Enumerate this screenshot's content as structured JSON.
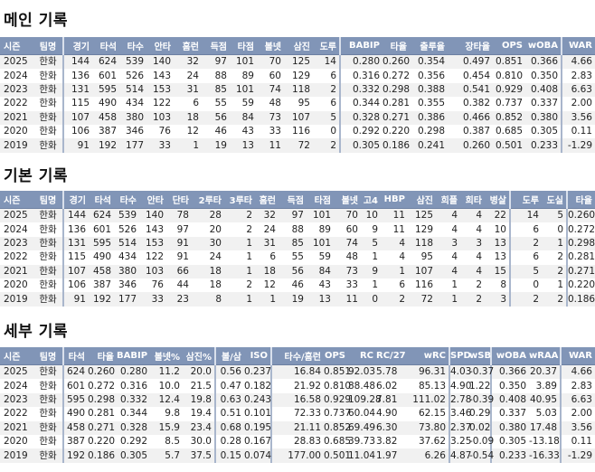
{
  "colors": {
    "header_bg": "#8195b7",
    "row_alt": "#f1f1f1"
  },
  "sections": [
    {
      "title": "메인 기록",
      "columns": [
        "시즌",
        "팀명",
        "경기",
        "타석",
        "타수",
        "안타",
        "홈런",
        "득점",
        "타점",
        "볼넷",
        "삼진",
        "도루",
        "BABIP",
        "타율",
        "출루율",
        "장타율",
        "OPS",
        "wOBA",
        "WAR"
      ],
      "rows": [
        [
          "2025",
          "한화",
          "144",
          "624",
          "539",
          "140",
          "32",
          "97",
          "101",
          "70",
          "125",
          "14",
          "0.280",
          "0.260",
          "0.354",
          "0.497",
          "0.851",
          "0.366",
          "4.66"
        ],
        [
          "2024",
          "한화",
          "136",
          "601",
          "526",
          "143",
          "24",
          "88",
          "89",
          "60",
          "129",
          "6",
          "0.316",
          "0.272",
          "0.356",
          "0.454",
          "0.810",
          "0.350",
          "2.83"
        ],
        [
          "2023",
          "한화",
          "131",
          "595",
          "514",
          "153",
          "31",
          "85",
          "101",
          "74",
          "118",
          "2",
          "0.332",
          "0.298",
          "0.388",
          "0.541",
          "0.929",
          "0.408",
          "6.63"
        ],
        [
          "2022",
          "한화",
          "115",
          "490",
          "434",
          "122",
          "6",
          "55",
          "59",
          "48",
          "95",
          "6",
          "0.344",
          "0.281",
          "0.355",
          "0.382",
          "0.737",
          "0.337",
          "2.00"
        ],
        [
          "2021",
          "한화",
          "107",
          "458",
          "380",
          "103",
          "18",
          "56",
          "84",
          "73",
          "107",
          "5",
          "0.328",
          "0.271",
          "0.386",
          "0.466",
          "0.852",
          "0.380",
          "3.56"
        ],
        [
          "2020",
          "한화",
          "106",
          "387",
          "346",
          "76",
          "12",
          "46",
          "43",
          "33",
          "116",
          "0",
          "0.292",
          "0.220",
          "0.298",
          "0.387",
          "0.685",
          "0.305",
          "0.11"
        ],
        [
          "2019",
          "한화",
          "91",
          "192",
          "177",
          "33",
          "1",
          "19",
          "13",
          "11",
          "72",
          "2",
          "0.305",
          "0.186",
          "0.241",
          "0.260",
          "0.501",
          "0.233",
          "-1.29"
        ]
      ]
    },
    {
      "title": "기본 기록",
      "columns": [
        "시즌",
        "팀명",
        "경기",
        "타석",
        "타수",
        "안타",
        "단타",
        "2루타",
        "3루타",
        "홈런",
        "득점",
        "타점",
        "볼넷",
        "고4",
        "HBP",
        "삼진",
        "희플",
        "희타",
        "병살",
        "도루",
        "도실",
        "타율"
      ],
      "rows": [
        [
          "2025",
          "한화",
          "144",
          "624",
          "539",
          "140",
          "78",
          "28",
          "2",
          "32",
          "97",
          "101",
          "70",
          "10",
          "11",
          "125",
          "4",
          "4",
          "22",
          "14",
          "5",
          "0.260"
        ],
        [
          "2024",
          "한화",
          "136",
          "601",
          "526",
          "143",
          "97",
          "20",
          "2",
          "24",
          "88",
          "89",
          "60",
          "9",
          "11",
          "129",
          "4",
          "4",
          "10",
          "6",
          "0",
          "0.272"
        ],
        [
          "2023",
          "한화",
          "131",
          "595",
          "514",
          "153",
          "91",
          "30",
          "1",
          "31",
          "85",
          "101",
          "74",
          "5",
          "4",
          "118",
          "3",
          "3",
          "13",
          "2",
          "1",
          "0.298"
        ],
        [
          "2022",
          "한화",
          "115",
          "490",
          "434",
          "122",
          "91",
          "24",
          "1",
          "6",
          "55",
          "59",
          "48",
          "1",
          "4",
          "95",
          "4",
          "4",
          "13",
          "6",
          "2",
          "0.281"
        ],
        [
          "2021",
          "한화",
          "107",
          "458",
          "380",
          "103",
          "66",
          "18",
          "1",
          "18",
          "56",
          "84",
          "73",
          "9",
          "1",
          "107",
          "4",
          "4",
          "15",
          "5",
          "2",
          "0.271"
        ],
        [
          "2020",
          "한화",
          "106",
          "387",
          "346",
          "76",
          "44",
          "18",
          "2",
          "12",
          "46",
          "43",
          "33",
          "1",
          "6",
          "116",
          "1",
          "2",
          "8",
          "0",
          "1",
          "0.220"
        ],
        [
          "2019",
          "한화",
          "91",
          "192",
          "177",
          "33",
          "23",
          "8",
          "1",
          "1",
          "19",
          "13",
          "11",
          "0",
          "2",
          "72",
          "1",
          "2",
          "3",
          "2",
          "2",
          "0.186"
        ]
      ]
    },
    {
      "title": "세부 기록",
      "columns": [
        "시즌",
        "팀명",
        "타석",
        "타율",
        "BABIP",
        "볼넷%",
        "삼진%",
        "볼/삼",
        "ISO",
        "타수/홈런",
        "OPS",
        "RC",
        "RC/27",
        "wRC",
        "SPD",
        "wSB",
        "wOBA",
        "wRAA",
        "WAR"
      ],
      "rows": [
        [
          "2025",
          "한화",
          "624",
          "0.260",
          "0.280",
          "11.2",
          "20.0",
          "0.56",
          "0.237",
          "16.84",
          "0.851",
          "92.03",
          "5.78",
          "96.31",
          "4.03",
          "-0.37",
          "0.366",
          "20.37",
          "4.66"
        ],
        [
          "2024",
          "한화",
          "601",
          "0.272",
          "0.316",
          "10.0",
          "21.5",
          "0.47",
          "0.182",
          "21.92",
          "0.810",
          "88.48",
          "6.02",
          "85.13",
          "4.90",
          "1.22",
          "0.350",
          "3.89",
          "2.83"
        ],
        [
          "2023",
          "한화",
          "595",
          "0.298",
          "0.332",
          "12.4",
          "19.8",
          "0.63",
          "0.243",
          "16.58",
          "0.929",
          "109.28",
          "7.81",
          "111.02",
          "2.78",
          "-0.39",
          "0.408",
          "40.95",
          "6.63"
        ],
        [
          "2022",
          "한화",
          "490",
          "0.281",
          "0.344",
          "9.8",
          "19.4",
          "0.51",
          "0.101",
          "72.33",
          "0.737",
          "60.04",
          "4.90",
          "62.15",
          "3.46",
          "0.29",
          "0.337",
          "5.03",
          "2.00"
        ],
        [
          "2021",
          "한화",
          "458",
          "0.271",
          "0.328",
          "15.9",
          "23.4",
          "0.68",
          "0.195",
          "21.11",
          "0.852",
          "69.49",
          "6.30",
          "73.80",
          "2.37",
          "0.02",
          "0.380",
          "17.48",
          "3.56"
        ],
        [
          "2020",
          "한화",
          "387",
          "0.220",
          "0.292",
          "8.5",
          "30.0",
          "0.28",
          "0.167",
          "28.83",
          "0.685",
          "39.73",
          "3.82",
          "37.62",
          "3.25",
          "-0.09",
          "0.305",
          "-13.18",
          "0.11"
        ],
        [
          "2019",
          "한화",
          "192",
          "0.186",
          "0.305",
          "5.7",
          "37.5",
          "0.15",
          "0.074",
          "177.00",
          "0.501",
          "11.04",
          "1.97",
          "6.26",
          "4.87",
          "-0.54",
          "0.233",
          "-16.33",
          "-1.29"
        ]
      ]
    }
  ]
}
